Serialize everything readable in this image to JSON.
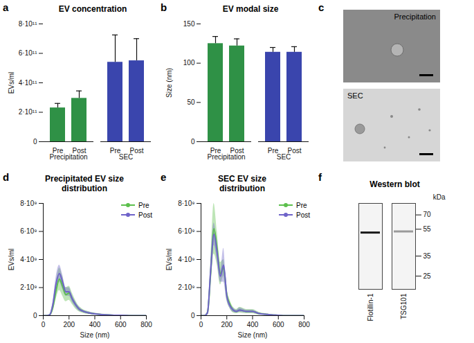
{
  "chart_data": [
    {
      "type": "bar",
      "annotations": [
        "a"
      ],
      "title": "EV concentration",
      "categories": [
        "Pre",
        "Post"
      ],
      "series": [
        {
          "name": "Precipitation",
          "color": "#2f9146",
          "values": [
            230000000000.0,
            295000000000.0
          ],
          "errors": [
            30000000000.0,
            50000000000.0
          ]
        },
        {
          "name": "SEC",
          "color": "#3a45ad",
          "values": [
            540000000000.0,
            550000000000.0
          ],
          "errors": [
            185000000000.0,
            150000000000.0
          ]
        }
      ],
      "y_label": "EVs/ml",
      "ylim": [
        0,
        800000000000.0
      ],
      "yticks": [
        0,
        {
          "value": 200000000000.0,
          "label": "2·10¹¹"
        },
        {
          "value": 400000000000.0,
          "label": "4·10¹¹"
        },
        {
          "value": 600000000000.0,
          "label": "6·10¹¹"
        },
        {
          "value": 800000000000.0,
          "label": "8·10¹¹"
        }
      ]
    },
    {
      "type": "bar",
      "annotations": [
        "b"
      ],
      "title": "EV modal size",
      "categories": [
        "Pre",
        "Post"
      ],
      "series": [
        {
          "name": "Precipitation",
          "color": "#2f9146",
          "values": [
            125,
            122
          ],
          "errors": [
            9,
            9
          ]
        },
        {
          "name": "SEC",
          "color": "#3a45ad",
          "values": [
            114,
            114
          ],
          "errors": [
            6,
            7
          ]
        }
      ],
      "y_label": "Size (nm)",
      "ylim": [
        0,
        150
      ],
      "yticks": [
        0,
        50,
        100,
        150
      ]
    },
    {
      "type": "image",
      "annotations": [
        "c"
      ],
      "categories": [
        "Precipitation",
        "SEC"
      ]
    },
    {
      "type": "line",
      "annotations": [
        "d"
      ],
      "title": "Precipitated EV size distribution",
      "x_label": "Size (nm)",
      "y_label": "EVs/ml",
      "x": [
        0,
        25,
        50,
        75,
        100,
        125,
        150,
        175,
        200,
        225,
        250,
        275,
        300,
        350,
        400,
        450,
        500,
        550,
        600,
        650,
        700,
        750,
        800
      ],
      "series": [
        {
          "name": "Pre",
          "color": "#5cbf4c",
          "values": [
            0,
            0,
            50000000.0,
            600000000.0,
            1800000000.0,
            2600000000.0,
            2100000000.0,
            1500000000.0,
            1600000000.0,
            1200000000.0,
            800000000.0,
            500000000.0,
            350000000.0,
            200000000.0,
            120000000.0,
            80000000.0,
            50000000.0,
            30000000.0,
            20000000.0,
            10000000.0,
            0,
            0,
            0
          ],
          "errors": [
            0,
            0,
            50000000.0,
            300000000.0,
            600000000.0,
            800000000.0,
            700000000.0,
            500000000.0,
            500000000.0,
            400000000.0,
            300000000.0,
            200000000.0,
            150000000.0,
            100000000.0,
            60000000.0,
            40000000.0,
            30000000.0,
            20000000.0,
            10000000.0,
            0,
            0,
            0,
            0
          ]
        },
        {
          "name": "Post",
          "color": "#6f63c9",
          "values": [
            0,
            0,
            50000000.0,
            800000000.0,
            2300000000.0,
            3000000000.0,
            2400000000.0,
            1700000000.0,
            1700000000.0,
            1200000000.0,
            800000000.0,
            500000000.0,
            350000000.0,
            200000000.0,
            120000000.0,
            80000000.0,
            50000000.0,
            30000000.0,
            20000000.0,
            10000000.0,
            0,
            0,
            0
          ],
          "errors": [
            0,
            0,
            30000000.0,
            200000000.0,
            500000000.0,
            600000000.0,
            500000000.0,
            300000000.0,
            300000000.0,
            250000000.0,
            200000000.0,
            150000000.0,
            100000000.0,
            80000000.0,
            50000000.0,
            30000000.0,
            20000000.0,
            10000000.0,
            10000000.0,
            0,
            0,
            0,
            0
          ]
        }
      ],
      "xlim": [
        0,
        800
      ],
      "xticks": [
        0,
        200,
        400,
        600,
        800
      ],
      "ylim": [
        0,
        8000000000.0
      ],
      "yticks": [
        0,
        {
          "value": 2000000000.0,
          "label": "2·10⁹"
        },
        {
          "value": 4000000000.0,
          "label": "4·10⁹"
        },
        {
          "value": 6000000000.0,
          "label": "6·10⁹"
        },
        {
          "value": 8000000000.0,
          "label": "8·10⁹"
        }
      ],
      "legend": "top-right"
    },
    {
      "type": "line",
      "annotations": [
        "e"
      ],
      "title": "SEC EV size distribution",
      "x_label": "Size (nm)",
      "y_label": "EVs/ml",
      "x": [
        0,
        25,
        50,
        75,
        100,
        125,
        150,
        175,
        200,
        225,
        250,
        275,
        300,
        350,
        400,
        450,
        500,
        550,
        600,
        650,
        700,
        750,
        800
      ],
      "series": [
        {
          "name": "Pre",
          "color": "#5cbf4c",
          "values": [
            0,
            0,
            200000000.0,
            3000000000.0,
            6200000000.0,
            4800000000.0,
            3000000000.0,
            3400000000.0,
            1500000000.0,
            800000000.0,
            400000000.0,
            300000000.0,
            400000000.0,
            300000000.0,
            300000000.0,
            150000000.0,
            100000000.0,
            50000000.0,
            30000000.0,
            0,
            0,
            0,
            0
          ],
          "errors": [
            0,
            0,
            100000000.0,
            800000000.0,
            1800000000.0,
            1200000000.0,
            800000000.0,
            600000000.0,
            400000000.0,
            300000000.0,
            200000000.0,
            150000000.0,
            200000000.0,
            150000000.0,
            150000000.0,
            100000000.0,
            50000000.0,
            30000000.0,
            20000000.0,
            0,
            0,
            0,
            0
          ]
        },
        {
          "name": "Post",
          "color": "#6f63c9",
          "values": [
            0,
            0,
            200000000.0,
            3200000000.0,
            5800000000.0,
            4500000000.0,
            2800000000.0,
            3600000000.0,
            1400000000.0,
            700000000.0,
            400000000.0,
            300000000.0,
            400000000.0,
            300000000.0,
            300000000.0,
            150000000.0,
            100000000.0,
            50000000.0,
            30000000.0,
            0,
            0,
            0,
            0
          ],
          "errors": [
            0,
            0,
            100000000.0,
            500000000.0,
            800000000.0,
            600000000.0,
            400000000.0,
            1200000000.0,
            300000000.0,
            200000000.0,
            150000000.0,
            100000000.0,
            150000000.0,
            100000000.0,
            100000000.0,
            50000000.0,
            30000000.0,
            20000000.0,
            10000000.0,
            0,
            0,
            0,
            0
          ]
        }
      ],
      "xlim": [
        0,
        800
      ],
      "xticks": [
        0,
        200,
        400,
        600,
        800
      ],
      "ylim": [
        0,
        8000000000.0
      ],
      "yticks": [
        0,
        {
          "value": 2000000000.0,
          "label": "2·10⁹"
        },
        {
          "value": 4000000000.0,
          "label": "4·10⁹"
        },
        {
          "value": 6000000000.0,
          "label": "6·10⁹"
        },
        {
          "value": 8000000000.0,
          "label": "8·10⁹"
        }
      ],
      "legend": "top-right"
    },
    {
      "type": "western_blot",
      "annotations": [
        "f"
      ],
      "title": "Western blot",
      "categories": [
        "Flotillin-1",
        "TSG101"
      ],
      "values": [
        52,
        53
      ],
      "colors": [
        "#1a1a1a",
        "#9a9a9a"
      ],
      "y_label": "kDa",
      "log": "y",
      "ylim": [
        20,
        85
      ],
      "yticks": [
        70,
        55,
        35,
        25
      ]
    }
  ]
}
